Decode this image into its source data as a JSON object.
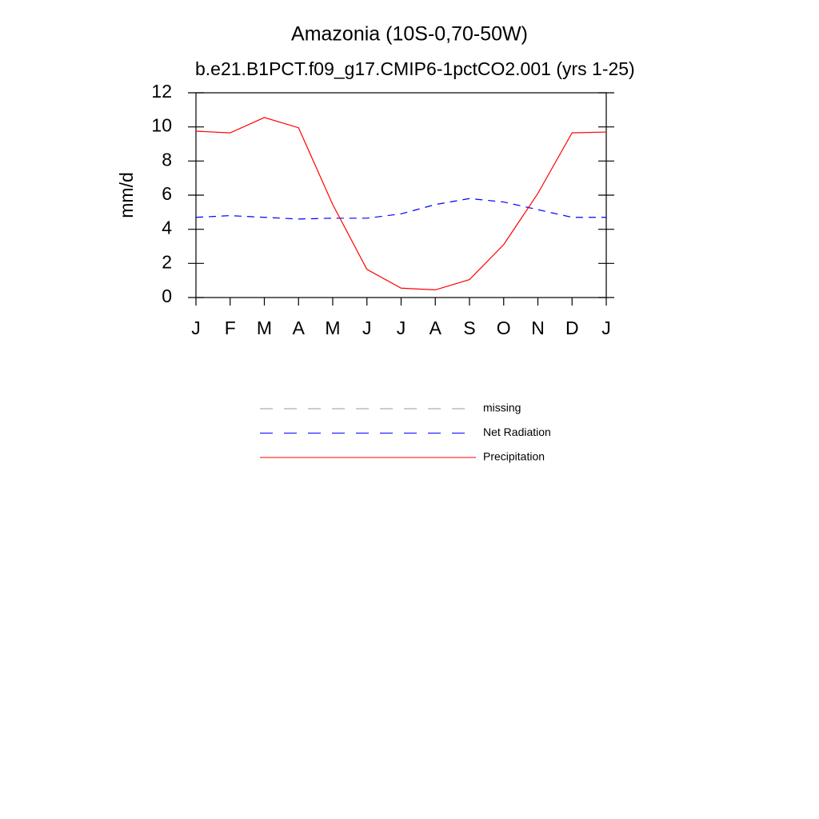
{
  "chart_data": {
    "type": "line",
    "title": "Amazonia (10S-0,70-50W)",
    "subtitle": "b.e21.B1PCT.f09_g17.CMIP6-1pctCO2.001 (yrs 1-25)",
    "y_label": "mm/d",
    "categories": [
      "J",
      "F",
      "M",
      "A",
      "M",
      "J",
      "J",
      "A",
      "S",
      "O",
      "N",
      "D",
      "J"
    ],
    "series": [
      {
        "name": "missing",
        "color": "#999999",
        "style": "dashed",
        "values": [
          null,
          null,
          null,
          null,
          null,
          null,
          null,
          null,
          null,
          null,
          null,
          null,
          null
        ]
      },
      {
        "name": "Net Radiation",
        "color": "#0000ff",
        "style": "dashed",
        "values": [
          4.7,
          4.8,
          4.7,
          4.6,
          4.65,
          4.65,
          4.9,
          5.45,
          5.8,
          5.6,
          5.15,
          4.7,
          4.7
        ]
      },
      {
        "name": "Precipitation",
        "color": "#ff0000",
        "style": "solid",
        "values": [
          9.75,
          9.65,
          10.55,
          9.95,
          5.45,
          1.65,
          0.55,
          0.45,
          1.05,
          3.1,
          6.1,
          9.65,
          9.7
        ]
      }
    ],
    "ylim": [
      0,
      12
    ],
    "yticks": [
      0,
      2,
      4,
      6,
      8,
      10,
      12
    ],
    "legend": "bottom"
  }
}
